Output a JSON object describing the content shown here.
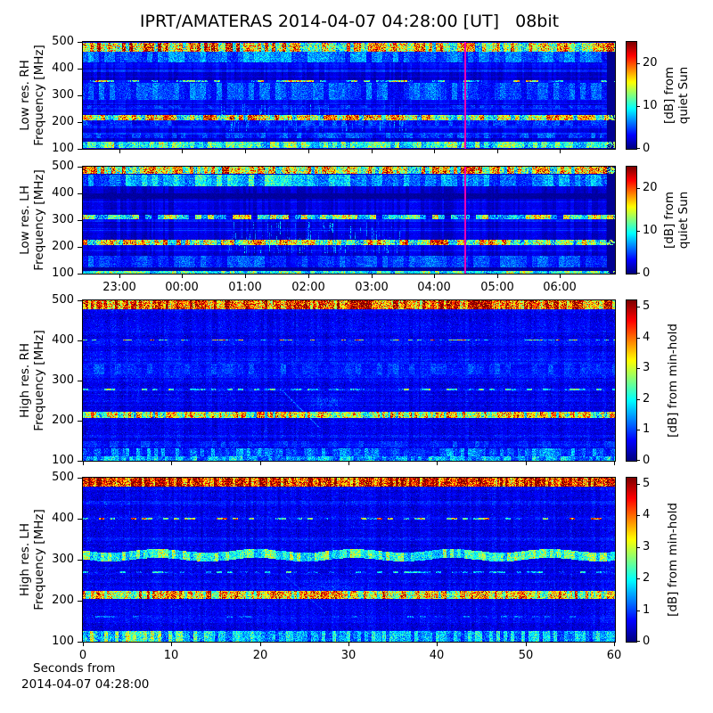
{
  "title": "IPRT/AMATERAS 2014-04-07 04:28:00 [UT]   08bit",
  "footer": {
    "line1": "Seconds from",
    "line2": "2014-04-07 04:28:00"
  },
  "colors": {
    "background": "#ffffff",
    "frame": "#000000",
    "cursor": "#ea00b4"
  },
  "time_axis": {
    "labels": [
      "23:00",
      "00:00",
      "01:00",
      "02:00",
      "03:00",
      "04:00",
      "05:00",
      "06:00"
    ],
    "fracs": [
      0.069,
      0.187,
      0.306,
      0.424,
      0.543,
      0.661,
      0.78,
      0.898
    ]
  },
  "seconds_axis": {
    "labels": [
      "0",
      "10",
      "20",
      "30",
      "40",
      "50",
      "60"
    ],
    "fracs": [
      0,
      0.1667,
      0.3333,
      0.5,
      0.6667,
      0.8333,
      1
    ]
  },
  "chart_data": {
    "type": "heatmap",
    "colormap": "jet",
    "panels": [
      {
        "name": "low-res-rh",
        "ylabel_lines": [
          "Low res. RH",
          "Frequency [MHz]"
        ],
        "ylim": [
          100,
          500
        ],
        "yticks": [
          500,
          400,
          300,
          200,
          100
        ],
        "xaxis": "time",
        "show_xlabels": false,
        "colorbar": {
          "vmax": 25,
          "ticks": [
            0,
            10,
            20
          ],
          "label_lines": [
            "[dB] from",
            "quiet Sun"
          ]
        },
        "noise": {
          "base_db": 1.7,
          "row_var_db": 2.6,
          "col_var_db": 0.8,
          "pixel_db": 1.1,
          "seed": 11
        },
        "bands": [
          {
            "f": [
              466,
              496
            ],
            "db": 15,
            "var": 7,
            "cell": 4,
            "profile": [
              [
                0,
                1.1
              ],
              [
                0.12,
                1.25
              ],
              [
                0.3,
                1.1
              ],
              [
                0.55,
                0.95
              ],
              [
                0.8,
                0.95
              ],
              [
                1,
                1.05
              ]
            ]
          },
          {
            "f": [
              424,
              464
            ],
            "db": 5.5,
            "var": 2.2,
            "cell": 6,
            "profile": [
              [
                0,
                0.95
              ],
              [
                0.2,
                1.1
              ],
              [
                0.45,
                1.05
              ],
              [
                0.75,
                0.85
              ],
              [
                1,
                0.95
              ]
            ]
          },
          {
            "f": [
              350,
              356
            ],
            "db": 11,
            "var": 7,
            "cell": 7,
            "dash": {
              "duty": 0.6
            },
            "rows": 3
          },
          {
            "f": [
              286,
              344
            ],
            "db": 4.6,
            "var": 1.9,
            "cell": 6
          },
          {
            "f": [
              253,
              261
            ],
            "db": 3.4,
            "var": 1.5,
            "cell": 5
          },
          {
            "f": [
              209,
              226
            ],
            "db": 14,
            "var": 7,
            "cell": 5,
            "profile": [
              [
                0,
                0.95
              ],
              [
                0.25,
                1.1
              ],
              [
                0.5,
                1.05
              ],
              [
                0.75,
                0.9
              ],
              [
                1,
                1.0
              ]
            ]
          },
          {
            "f": [
              188,
              206
            ],
            "db": 3.6,
            "var": 1.8,
            "cell": 5
          },
          {
            "f": [
              142,
              158
            ],
            "db": 4.0,
            "var": 2.0,
            "cell": 5
          },
          {
            "f": [
              104,
              124
            ],
            "db": 10,
            "var": 4,
            "cell": 5
          }
        ],
        "streaks": {
          "frac": [
            0.26,
            0.63
          ],
          "f": [
            168,
            268
          ],
          "count": 130,
          "db": [
            3,
            6.5
          ]
        },
        "right_gap": true,
        "cursor": {
          "frac": 0.719
        }
      },
      {
        "name": "low-res-lh",
        "ylabel_lines": [
          "Low res. LH",
          "Frequency [MHz]"
        ],
        "ylim": [
          100,
          500
        ],
        "yticks": [
          500,
          400,
          300,
          200,
          100
        ],
        "xaxis": "time",
        "show_xlabels": true,
        "colorbar": {
          "vmax": 25,
          "ticks": [
            0,
            10,
            20
          ],
          "label_lines": [
            "[dB] from",
            "quiet Sun"
          ]
        },
        "noise": {
          "base_db": 1.8,
          "row_var_db": 2.6,
          "col_var_db": 0.9,
          "pixel_db": 1.1,
          "seed": 22
        },
        "bands": [
          {
            "f": [
              476,
              497
            ],
            "db": 14.5,
            "var": 7,
            "cell": 4
          },
          {
            "f": [
              428,
              468
            ],
            "db": 6.5,
            "var": 2.4,
            "cell": 6,
            "profile": [
              [
                0,
                0.9
              ],
              [
                0.15,
                1.15
              ],
              [
                0.3,
                1.35
              ],
              [
                0.5,
                1.05
              ],
              [
                0.75,
                0.9
              ],
              [
                1,
                1.0
              ]
            ]
          },
          {
            "f": [
              382,
              398
            ],
            "db": -1.3
          },
          {
            "f": [
              305,
              320
            ],
            "db": 11.5,
            "var": 5.5,
            "cell": 7,
            "dash": {
              "duty": 0.85
            }
          },
          {
            "f": [
              209,
              224
            ],
            "db": 14.5,
            "var": 7,
            "cell": 5
          },
          {
            "f": [
              126,
              164
            ],
            "db": 4.2,
            "var": 1.8,
            "cell": 6
          },
          {
            "f": [
              110,
              122
            ],
            "db": -1.1
          },
          {
            "f": [
              100,
              109
            ],
            "db": 10,
            "var": 3.5,
            "cell": 5
          }
        ],
        "streaks": {
          "frac": [
            0.27,
            0.6
          ],
          "f": [
            178,
            298
          ],
          "count": 140,
          "db": [
            3,
            7
          ]
        },
        "right_gap": true,
        "cursor": {
          "frac": 0.719
        }
      },
      {
        "name": "high-res-rh",
        "ylabel_lines": [
          "High res. RH",
          "Frequency [MHz]"
        ],
        "ylim": [
          100,
          500
        ],
        "yticks": [
          500,
          400,
          300,
          200,
          100
        ],
        "xaxis": "seconds",
        "show_xlabels": false,
        "colorbar": {
          "vmax": 5.2,
          "ticks": [
            0,
            1,
            2,
            3,
            4,
            5
          ],
          "label_lines": [
            "[dB] from min-hold"
          ]
        },
        "noise": {
          "base_db": 0.5,
          "row_var_db": 0.28,
          "col_var_db": 0.12,
          "pixel_db": 0.5,
          "seed": 33
        },
        "bands": [
          {
            "f": [
              478,
              500
            ],
            "db": 4.3,
            "var": 1.2,
            "cell": 3
          },
          {
            "f": [
              399,
              402
            ],
            "db": 2.6,
            "var": 1.6,
            "cell": 5,
            "dash": {
              "duty": 0.38
            },
            "rows": 1
          },
          {
            "f": [
              316,
              342
            ],
            "db": 0.78,
            "var": 0.32,
            "cell": 6
          },
          {
            "f": [
              271,
              279
            ],
            "db": 1.6,
            "var": 1.2,
            "cell": 6,
            "dash": {
              "duty": 0.5
            },
            "rows": 2
          },
          {
            "f": [
              207,
              222
            ],
            "db": 2.9,
            "var": 1.3,
            "cell": 3
          },
          {
            "f": [
              134,
              148
            ],
            "db": 0.72,
            "var": 0.3,
            "cell": 5
          },
          {
            "f": [
              112,
              130
            ],
            "db": 1.05,
            "var": 0.55,
            "cell": 4
          },
          {
            "f": [
              100,
              111
            ],
            "db": 1.5,
            "var": 0.6,
            "cell": 4
          }
        ],
        "burst_arc": {
          "t": 22.5,
          "f_top": 275,
          "f_bot": 185,
          "drift": 0.045,
          "db": 1.15,
          "blob": {
            "t": 27.5,
            "f": 245,
            "rt": 3.2,
            "rf": 32,
            "db": 0.55
          }
        }
      },
      {
        "name": "high-res-lh",
        "ylabel_lines": [
          "High res. LH",
          "Frequency [MHz]"
        ],
        "ylim": [
          100,
          500
        ],
        "yticks": [
          500,
          400,
          300,
          200,
          100
        ],
        "xaxis": "seconds",
        "show_xlabels": true,
        "colorbar": {
          "vmax": 5.2,
          "ticks": [
            0,
            1,
            2,
            3,
            4,
            5
          ],
          "label_lines": [
            "[dB] from min-hold"
          ]
        },
        "noise": {
          "base_db": 0.5,
          "row_var_db": 0.28,
          "col_var_db": 0.12,
          "pixel_db": 0.5,
          "seed": 44
        },
        "bands": [
          {
            "f": [
              480,
              500
            ],
            "db": 4.5,
            "var": 1.1,
            "cell": 3
          },
          {
            "f": [
              399,
              402
            ],
            "db": 2.9,
            "var": 1.7,
            "cell": 6,
            "dash": {
              "duty": 0.5
            },
            "rows": 2
          },
          {
            "f": [
              302,
              320
            ],
            "db": 2.2,
            "var": 0.7,
            "cell": 4,
            "wavy": {
              "amp": 2,
              "period": 110
            }
          },
          {
            "f": [
              264,
              271
            ],
            "db": 1.3,
            "var": 0.9,
            "cell": 6,
            "dash": {
              "duty": 0.42
            },
            "rows": 2
          },
          {
            "f": [
              205,
              222
            ],
            "db": 3.3,
            "var": 1.3,
            "cell": 3
          },
          {
            "f": [
              155,
              163
            ],
            "db": 0.85,
            "var": 0.5,
            "cell": 7,
            "dash": {
              "duty": 0.4
            },
            "rows": 2
          },
          {
            "f": [
              100,
              124
            ],
            "db": 1.6,
            "var": 0.7,
            "cell": 4,
            "profile": [
              [
                0,
                1.5
              ],
              [
                0.12,
                1.3
              ],
              [
                0.3,
                1.0
              ],
              [
                0.6,
                0.9
              ],
              [
                1,
                0.95
              ]
            ]
          }
        ],
        "burst_arc": {
          "t": 22.8,
          "f_top": 262,
          "f_bot": 172,
          "drift": 0.05,
          "db": 0.95,
          "blob": {
            "t": 28,
            "f": 230,
            "rt": 3.5,
            "rf": 38,
            "db": 0.5
          }
        }
      }
    ]
  }
}
